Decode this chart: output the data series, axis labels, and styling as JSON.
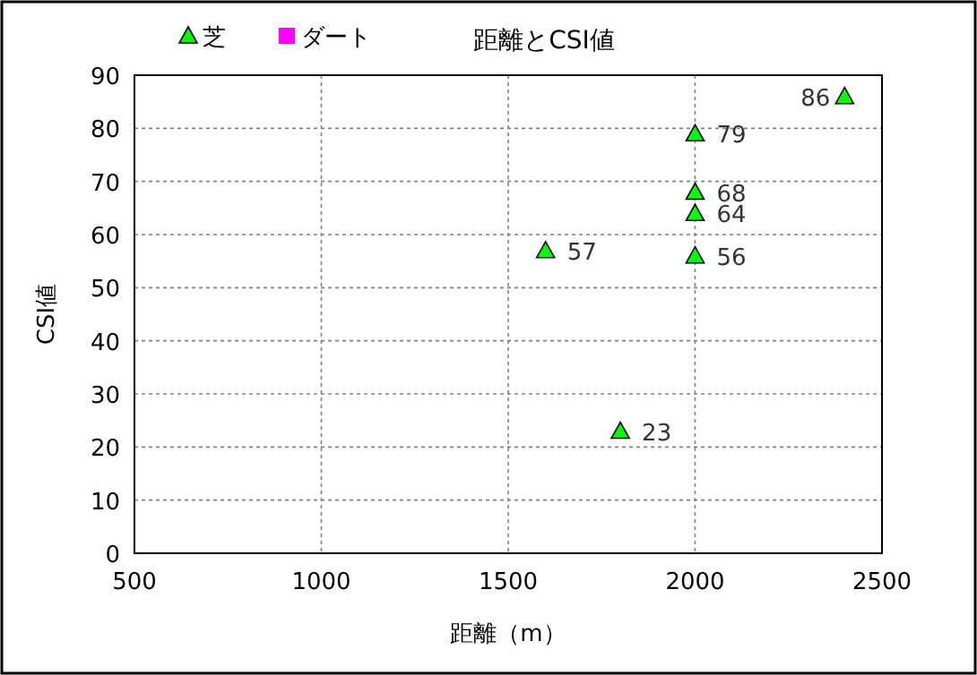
{
  "chart_data": {
    "type": "scatter",
    "title": "距離とCSI値",
    "xlabel": "距離（m）",
    "ylabel": "CSI値",
    "xlim": [
      500,
      2500
    ],
    "ylim": [
      0,
      90
    ],
    "xticks": [
      500,
      1000,
      1500,
      2000,
      2500
    ],
    "yticks": [
      0,
      10,
      20,
      30,
      40,
      50,
      60,
      70,
      80,
      90
    ],
    "grid": true,
    "legend": "top left",
    "data_labels": true,
    "series": [
      {
        "name": "芝",
        "color": "#00ff00",
        "marker": "triangle",
        "x": [
          1600,
          1800,
          2000,
          2000,
          2000,
          2000,
          2400
        ],
        "values": [
          57,
          23,
          79,
          68,
          64,
          56,
          86
        ]
      },
      {
        "name": "ダート",
        "color": "#ff00ff",
        "marker": "square"
      }
    ]
  }
}
